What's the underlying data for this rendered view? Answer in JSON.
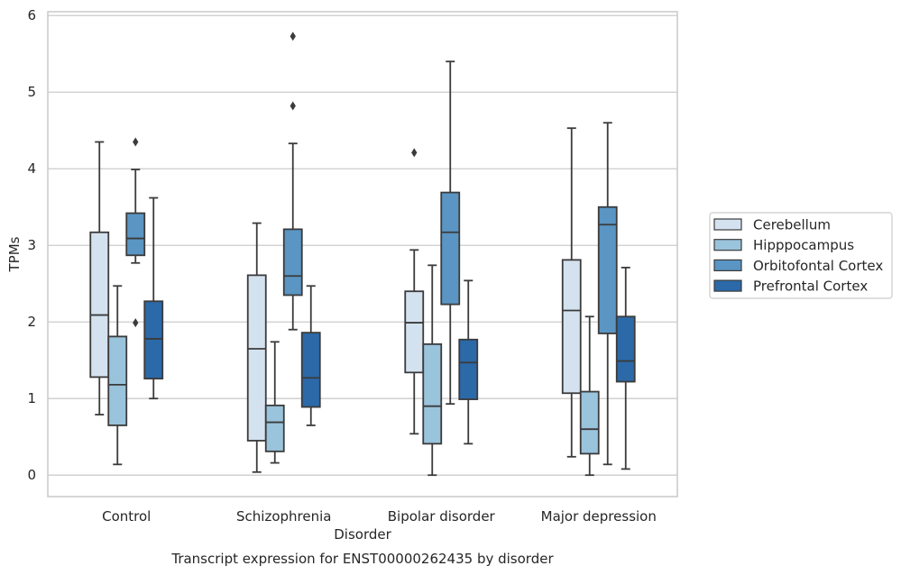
{
  "chart_data": {
    "type": "box",
    "title": "Transcript expression for ENST00000262435 by disorder",
    "xlabel": "Disorder",
    "ylabel": "TPMs",
    "ylim": [
      -0.28,
      6.05
    ],
    "yticks": [
      0,
      1,
      2,
      3,
      4,
      5,
      6
    ],
    "grid": "horizontal",
    "legend_position": "right",
    "categories": [
      "Control",
      "Schizophrenia",
      "Bipolar disorder",
      "Major depression"
    ],
    "series": [
      {
        "name": "Cerebellum",
        "color": "#d4e2f0",
        "boxes": [
          {
            "whislo": 0.79,
            "q1": 1.28,
            "med": 2.09,
            "q3": 3.17,
            "whishi": 4.35,
            "fliers": []
          },
          {
            "whislo": 0.04,
            "q1": 0.45,
            "med": 1.65,
            "q3": 2.61,
            "whishi": 3.29,
            "fliers": []
          },
          {
            "whislo": 0.54,
            "q1": 1.34,
            "med": 1.99,
            "q3": 2.4,
            "whishi": 2.94,
            "fliers": [
              4.21
            ]
          },
          {
            "whislo": 0.24,
            "q1": 1.07,
            "med": 2.15,
            "q3": 2.81,
            "whishi": 4.53,
            "fliers": []
          }
        ]
      },
      {
        "name": "Hipppocampus",
        "color": "#9ac3dc",
        "boxes": [
          {
            "whislo": 0.14,
            "q1": 0.65,
            "med": 1.18,
            "q3": 1.81,
            "whishi": 2.47,
            "fliers": []
          },
          {
            "whislo": 0.16,
            "q1": 0.31,
            "med": 0.69,
            "q3": 0.91,
            "whishi": 1.74,
            "fliers": []
          },
          {
            "whislo": 0.0,
            "q1": 0.41,
            "med": 0.9,
            "q3": 1.71,
            "whishi": 2.74,
            "fliers": []
          },
          {
            "whislo": 0.0,
            "q1": 0.28,
            "med": 0.6,
            "q3": 1.09,
            "whishi": 2.07,
            "fliers": []
          }
        ]
      },
      {
        "name": "Orbitofontal Cortex",
        "color": "#5a95c3",
        "boxes": [
          {
            "whislo": 2.77,
            "q1": 2.87,
            "med": 3.09,
            "q3": 3.42,
            "whishi": 3.99,
            "fliers": [
              4.35,
              1.99
            ]
          },
          {
            "whislo": 1.9,
            "q1": 2.35,
            "med": 2.6,
            "q3": 3.21,
            "whishi": 4.33,
            "fliers": [
              5.73,
              4.82
            ]
          },
          {
            "whislo": 0.93,
            "q1": 2.23,
            "med": 3.17,
            "q3": 3.69,
            "whishi": 5.4,
            "fliers": []
          },
          {
            "whislo": 0.14,
            "q1": 1.85,
            "med": 3.27,
            "q3": 3.5,
            "whishi": 4.6,
            "fliers": []
          }
        ]
      },
      {
        "name": "Prefrontal Cortex",
        "color": "#2b69a8",
        "boxes": [
          {
            "whislo": 1.0,
            "q1": 1.26,
            "med": 1.78,
            "q3": 2.27,
            "whishi": 3.62,
            "fliers": []
          },
          {
            "whislo": 0.65,
            "q1": 0.89,
            "med": 1.27,
            "q3": 1.86,
            "whishi": 2.47,
            "fliers": []
          },
          {
            "whislo": 0.41,
            "q1": 0.99,
            "med": 1.47,
            "q3": 1.77,
            "whishi": 2.54,
            "fliers": []
          },
          {
            "whislo": 0.08,
            "q1": 1.22,
            "med": 1.49,
            "q3": 2.07,
            "whishi": 2.71,
            "fliers": []
          }
        ]
      }
    ]
  }
}
